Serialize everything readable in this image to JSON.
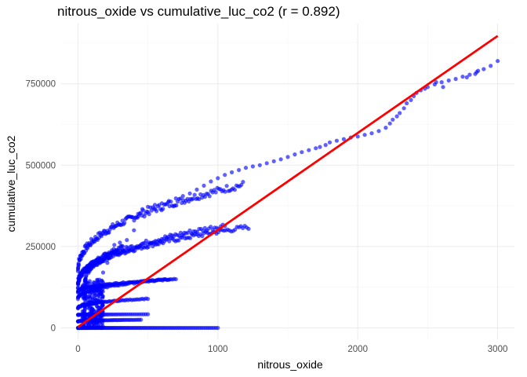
{
  "chart_data": {
    "type": "scatter",
    "title": "nitrous_oxide vs cumulative_luc_co2 (r = 0.892)",
    "xlabel": "nitrous_oxide",
    "ylabel": "cumulative_luc_co2",
    "xlim": [
      -120,
      3120
    ],
    "ylim": [
      -35000,
      935000
    ],
    "x_ticks": [
      0,
      1000,
      2000,
      3000
    ],
    "x_tick_labels": [
      "0",
      "1000",
      "2000",
      "3000"
    ],
    "y_ticks": [
      0,
      250000,
      500000,
      750000
    ],
    "y_tick_labels": [
      "0",
      "250000",
      "500000",
      "750000"
    ],
    "grid": true,
    "point_color": "#0000ff",
    "line_color": "#ff0000",
    "fit_line": {
      "x": [
        0,
        3000
      ],
      "y": [
        3000,
        897000
      ]
    },
    "clusters": [
      {
        "x0": 0,
        "x1": 1180,
        "y0": 175000,
        "y1": 440000,
        "n": 160
      },
      {
        "x0": 0,
        "x1": 1220,
        "y0": 135000,
        "y1": 310000,
        "n": 140
      },
      {
        "x0": 50,
        "x1": 1050,
        "y0": 140000,
        "y1": 315000,
        "n": 110
      },
      {
        "x0": 0,
        "x1": 700,
        "y0": 110000,
        "y1": 150000,
        "n": 90
      },
      {
        "x0": 0,
        "x1": 1000,
        "y0": 0,
        "y1": 0,
        "n": 110
      },
      {
        "x0": 0,
        "x1": 450,
        "y0": 20000,
        "y1": 25000,
        "n": 60
      },
      {
        "x0": 0,
        "x1": 500,
        "y0": 40000,
        "y1": 42000,
        "n": 50
      },
      {
        "x0": 0,
        "x1": 650,
        "y0": 90000,
        "y1": 150000,
        "n": 70
      },
      {
        "x0": 0,
        "x1": 500,
        "y0": 60000,
        "y1": 90000,
        "n": 60
      },
      {
        "x0": 0,
        "x1": 320,
        "y0": 120000,
        "y1": 250000,
        "n": 70
      }
    ],
    "points": [
      [
        80,
        10000
      ],
      [
        100,
        50000
      ],
      [
        120,
        90000
      ],
      [
        150,
        130000
      ],
      [
        180,
        170000
      ],
      [
        210,
        200000
      ],
      [
        240,
        230000
      ],
      [
        260,
        255000
      ],
      [
        300,
        262000
      ],
      [
        350,
        270000
      ],
      [
        400,
        300000
      ],
      [
        430,
        350000
      ],
      [
        460,
        365000
      ],
      [
        500,
        372000
      ],
      [
        550,
        378000
      ],
      [
        600,
        383000
      ],
      [
        650,
        390000
      ],
      [
        700,
        398000
      ],
      [
        750,
        405000
      ],
      [
        800,
        413000
      ],
      [
        850,
        425000
      ],
      [
        900,
        437000
      ],
      [
        950,
        450000
      ],
      [
        1000,
        460000
      ],
      [
        1050,
        470000
      ],
      [
        1100,
        478000
      ],
      [
        1150,
        485000
      ],
      [
        1200,
        492000
      ],
      [
        1250,
        496000
      ],
      [
        1300,
        500000
      ],
      [
        1350,
        506000
      ],
      [
        1400,
        512000
      ],
      [
        1450,
        518000
      ],
      [
        1500,
        525000
      ],
      [
        1550,
        533000
      ],
      [
        1600,
        540000
      ],
      [
        1650,
        546000
      ],
      [
        1700,
        552000
      ],
      [
        1730,
        556000
      ],
      [
        1770,
        562000
      ],
      [
        1800,
        570000
      ],
      [
        1850,
        575000
      ],
      [
        1900,
        580000
      ],
      [
        1950,
        585000
      ],
      [
        2000,
        588000
      ],
      [
        2050,
        593000
      ],
      [
        2100,
        598000
      ],
      [
        2150,
        605000
      ],
      [
        2200,
        615000
      ],
      [
        2230,
        628000
      ],
      [
        2250,
        640000
      ],
      [
        2280,
        650000
      ],
      [
        2300,
        660000
      ],
      [
        2330,
        675000
      ],
      [
        2350,
        690000
      ],
      [
        2380,
        700000
      ],
      [
        2400,
        712000
      ],
      [
        2420,
        722000
      ],
      [
        2450,
        730000
      ],
      [
        2480,
        735000
      ],
      [
        2500,
        740000
      ],
      [
        2550,
        748000
      ],
      [
        2600,
        755000
      ],
      [
        2650,
        760000
      ],
      [
        2700,
        765000
      ],
      [
        2750,
        772000
      ],
      [
        2800,
        778000
      ],
      [
        2850,
        786000
      ],
      [
        2900,
        795000
      ],
      [
        2950,
        805000
      ],
      [
        3000,
        820000
      ],
      [
        2840,
        780000
      ],
      [
        2860,
        790000
      ],
      [
        2780,
        770000
      ],
      [
        2560,
        755000
      ],
      [
        2610,
        740000
      ]
    ]
  }
}
